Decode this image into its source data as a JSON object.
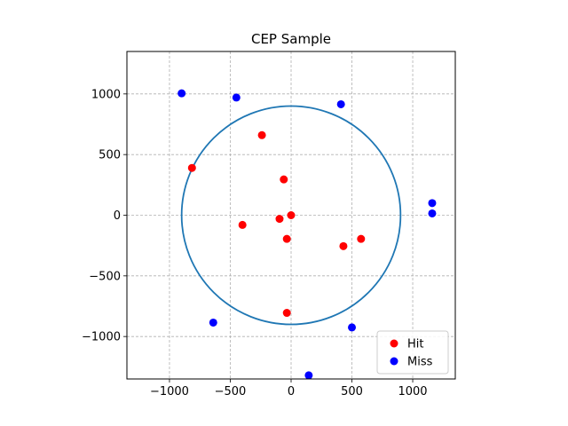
{
  "chart_data": {
    "type": "scatter",
    "title": "CEP Sample",
    "xlim": [
      -1350,
      1350
    ],
    "ylim": [
      -1350,
      1350
    ],
    "xticks": [
      -1000,
      -500,
      0,
      500,
      1000
    ],
    "yticks": [
      -1000,
      -500,
      0,
      500,
      1000
    ],
    "xtick_labels": [
      "−1000",
      "−500",
      "0",
      "500",
      "1000"
    ],
    "ytick_labels": [
      "−1000",
      "−500",
      "0",
      "500",
      "1000"
    ],
    "grid": true,
    "legend_position": "bottom-right",
    "circle": {
      "center": [
        0,
        0
      ],
      "radius": 900,
      "color": "#1f77b4"
    },
    "series": [
      {
        "name": "Hit",
        "color": "#ff0000",
        "points": [
          [
            -240,
            660
          ],
          [
            -815,
            390
          ],
          [
            -60,
            295
          ],
          [
            -95,
            -30
          ],
          [
            0,
            0
          ],
          [
            -400,
            -80
          ],
          [
            -35,
            -195
          ],
          [
            430,
            -255
          ],
          [
            575,
            -195
          ],
          [
            -35,
            -805
          ]
        ]
      },
      {
        "name": "Miss",
        "color": "#0000ff",
        "points": [
          [
            -900,
            1005
          ],
          [
            -450,
            970
          ],
          [
            410,
            915
          ],
          [
            1160,
            100
          ],
          [
            1160,
            15
          ],
          [
            -640,
            -885
          ],
          [
            500,
            -925
          ],
          [
            145,
            -1320
          ]
        ]
      }
    ]
  }
}
